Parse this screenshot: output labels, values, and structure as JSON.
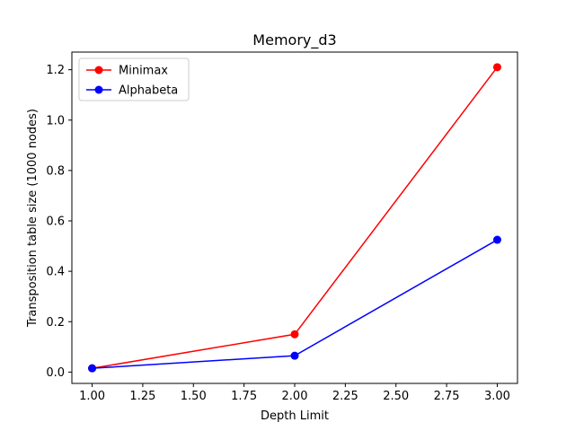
{
  "chart_data": {
    "type": "line",
    "title": "Memory_d3",
    "xlabel": "Depth Limit",
    "ylabel": "Transposition table size (1000 nodes)",
    "x": [
      1.0,
      2.0,
      3.0
    ],
    "xlim": [
      0.9,
      3.1
    ],
    "ylim": [
      -0.045,
      1.27
    ],
    "xticks": [
      1.0,
      1.25,
      1.5,
      1.75,
      2.0,
      2.25,
      2.5,
      2.75,
      3.0
    ],
    "xtick_labels": [
      "1.00",
      "1.25",
      "1.50",
      "1.75",
      "2.00",
      "2.25",
      "2.50",
      "2.75",
      "3.00"
    ],
    "yticks": [
      0.0,
      0.2,
      0.4,
      0.6,
      0.8,
      1.0,
      1.2
    ],
    "ytick_labels": [
      "0.0",
      "0.2",
      "0.4",
      "0.6",
      "0.8",
      "1.0",
      "1.2"
    ],
    "legend_position": "top-left",
    "grid": false,
    "series": [
      {
        "name": "Minimax",
        "color": "#ff0000",
        "values": [
          0.015,
          0.15,
          1.21
        ]
      },
      {
        "name": "Alphabeta",
        "color": "#0000ff",
        "values": [
          0.015,
          0.065,
          0.525
        ]
      }
    ]
  }
}
